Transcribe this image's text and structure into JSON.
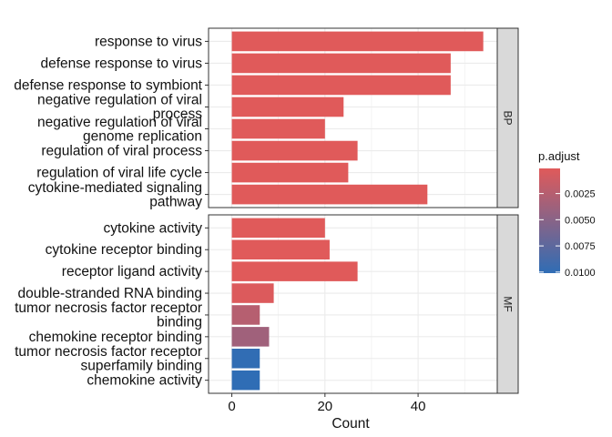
{
  "chart_data": {
    "type": "bar",
    "orientation": "horizontal",
    "facet": "grid rows",
    "xlabel": "Count",
    "xlim": [
      -5,
      57
    ],
    "xticks": [
      0,
      20,
      40
    ],
    "grid": true,
    "panels": [
      {
        "strip": "BP",
        "bars": [
          {
            "label": "response to virus",
            "count": 54,
            "p_adjust": 0.0001
          },
          {
            "label": "defense response to virus",
            "count": 47,
            "p_adjust": 0.0001
          },
          {
            "label": "defense response to symbiont",
            "count": 47,
            "p_adjust": 0.0001
          },
          {
            "label": "negative regulation of viral process",
            "count": 24,
            "p_adjust": 0.0001
          },
          {
            "label": "negative regulation of viral genome replication",
            "count": 20,
            "p_adjust": 0.0001
          },
          {
            "label": "regulation of viral process",
            "count": 27,
            "p_adjust": 0.0001
          },
          {
            "label": "regulation of viral life cycle",
            "count": 25,
            "p_adjust": 0.0001
          },
          {
            "label": "cytokine-mediated signaling pathway",
            "count": 42,
            "p_adjust": 0.0001
          }
        ]
      },
      {
        "strip": "MF",
        "bars": [
          {
            "label": "cytokine activity",
            "count": 20,
            "p_adjust": 0.0001
          },
          {
            "label": "cytokine receptor binding",
            "count": 21,
            "p_adjust": 0.0001
          },
          {
            "label": "receptor ligand activity",
            "count": 27,
            "p_adjust": 0.0001
          },
          {
            "label": "double-stranded RNA binding",
            "count": 9,
            "p_adjust": 0.0003
          },
          {
            "label": "tumor necrosis factor receptor binding",
            "count": 6,
            "p_adjust": 0.0025
          },
          {
            "label": "chemokine receptor binding",
            "count": 8,
            "p_adjust": 0.0037
          },
          {
            "label": "tumor necrosis factor receptor superfamily binding",
            "count": 6,
            "p_adjust": 0.01
          },
          {
            "label": "chemokine activity",
            "count": 6,
            "p_adjust": 0.0101
          }
        ]
      }
    ],
    "legend": {
      "title": "p.adjust",
      "placement": "right",
      "ticks": [
        "0.0025",
        "0.0050",
        "0.0075",
        "0.0100"
      ],
      "tick_values": [
        0.0025,
        0.005,
        0.0075,
        0.01
      ],
      "range": [
        0.0001,
        0.0101
      ],
      "color_low_value": "#e05a5a",
      "color_high_value": "#2f6db5"
    }
  }
}
